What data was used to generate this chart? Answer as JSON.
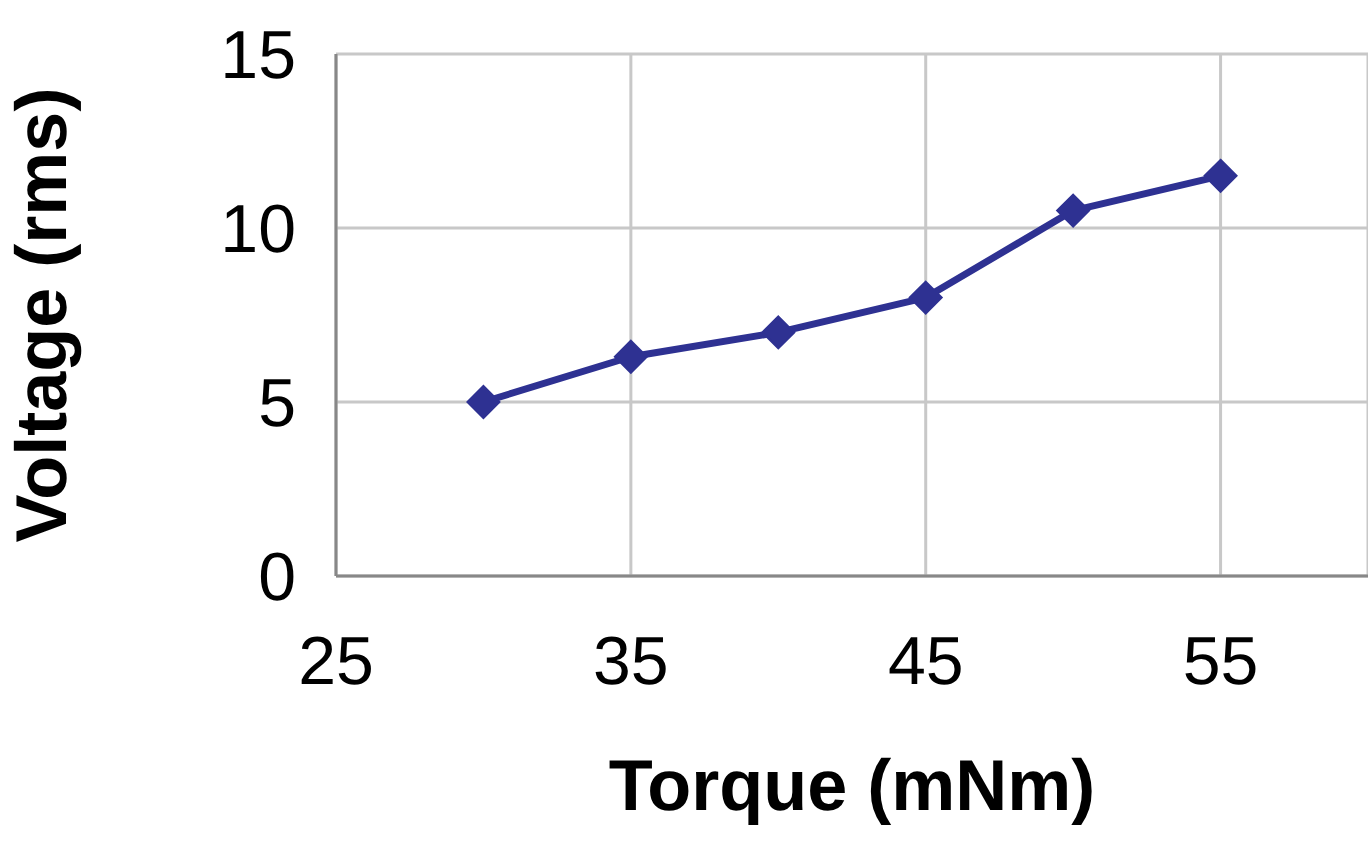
{
  "chart_data": {
    "type": "line",
    "xlabel": "Torque (mNm)",
    "ylabel": "Voltage (rms)",
    "x": [
      30,
      35,
      40,
      45,
      50,
      55
    ],
    "series": [
      {
        "color": "#2e3192",
        "values": [
          5,
          6.3,
          7,
          8,
          10.5,
          11.5
        ]
      }
    ],
    "xlim": [
      25,
      60
    ],
    "xticks": [
      25,
      35,
      45,
      55
    ],
    "ylim": [
      0,
      15
    ],
    "yticks": [
      0,
      5,
      10,
      15
    ],
    "grid": true,
    "marker": "diamond",
    "line_style": "solid",
    "legend": false
  }
}
